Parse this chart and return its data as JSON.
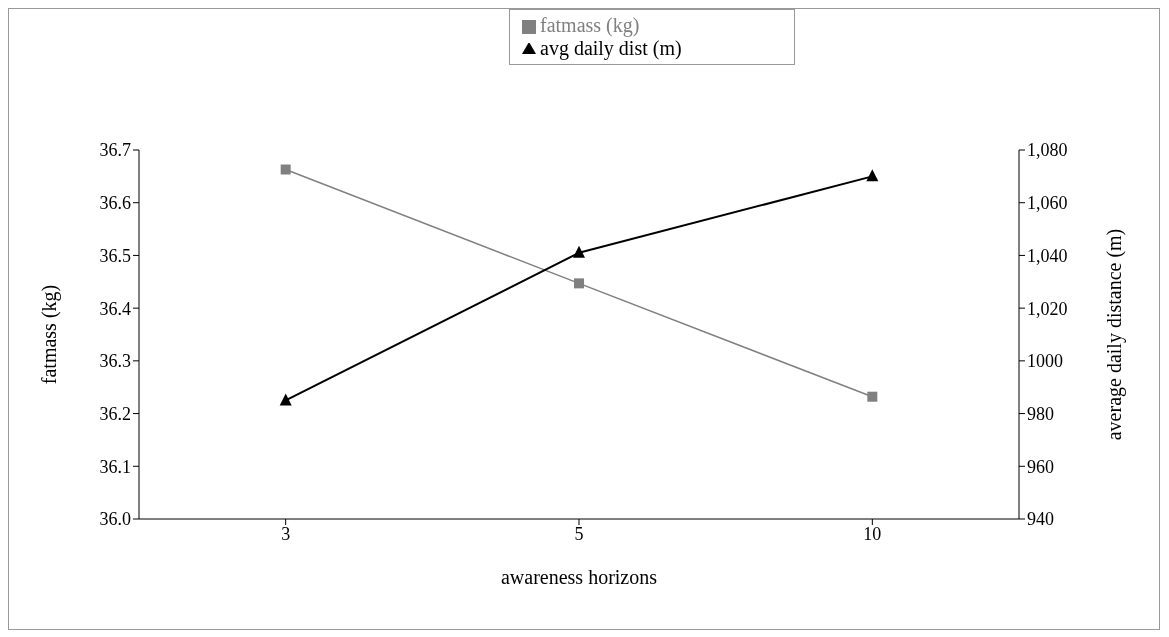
{
  "chart_data": {
    "type": "line",
    "xlabel": "awareness horizons",
    "ylabel": "fatmass (kg)",
    "y2label": "average daily distance (m)",
    "categories": [
      "3",
      "5",
      "10"
    ],
    "series": [
      {
        "name": "fatmass (kg)",
        "color": "#808080",
        "marker": "square",
        "values": [
          36.663,
          36.447,
          36.232
        ]
      },
      {
        "name": "avg daily dist (m)",
        "color": "#000000",
        "marker": "triangle",
        "axis": "y2",
        "values": [
          985,
          1041,
          1070
        ]
      }
    ],
    "ylim": [
      36.0,
      36.7
    ],
    "yticks": [
      {
        "value": 36.0,
        "label": "36.0"
      },
      {
        "value": 36.1,
        "label": "36.1"
      },
      {
        "value": 36.2,
        "label": "36.2"
      },
      {
        "value": 36.3,
        "label": "36.3"
      },
      {
        "value": 36.4,
        "label": "36.4"
      },
      {
        "value": 36.5,
        "label": "36.5"
      },
      {
        "value": 36.6,
        "label": "36.6"
      },
      {
        "value": 36.7,
        "label": "36.7"
      }
    ],
    "y2lim": [
      940,
      1080
    ],
    "y2ticks": [
      940,
      960,
      980,
      1000,
      {
        "value": 1020,
        "label": "1,020"
      },
      {
        "value": 1040,
        "label": "1,040"
      },
      {
        "value": 1060,
        "label": "1,060"
      },
      {
        "value": 1080,
        "label": "1,080"
      }
    ],
    "grid": false,
    "legend": "top",
    "line_style": "solid"
  }
}
